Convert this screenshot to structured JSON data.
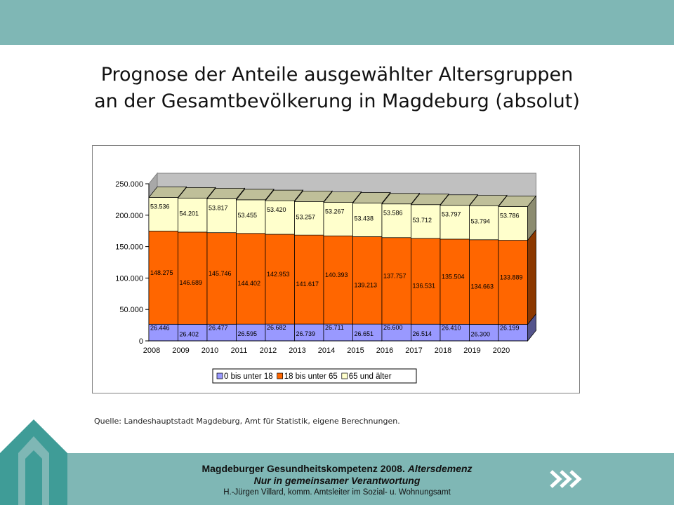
{
  "slide": {
    "title_line1": "Prognose der Anteile ausgewählter Altersgruppen",
    "title_line2": "an der Gesamtbevölkerung in Magdeburg (absolut)",
    "source": "Quelle: Landeshauptstadt Magdeburg, Amt für Statistik, eigene Berechnungen.",
    "footer_line1_bold": "Magdeburger Gesundheitskompetenz 2008.",
    "footer_line1_italic": "Altersdemenz",
    "footer_line2": "Nur in gemeinsamer Verantwortung",
    "footer_line3": "H.-Jürgen Villard, komm. Amtsleiter im Sozial- u. Wohnungsamt",
    "colors": {
      "band": "#7fb7b5",
      "logo": "#3f9c97",
      "arrows": "#ffffff"
    },
    "icons": {
      "logo": "gate-logo-icon",
      "arrows": "double-chevron-right-icon"
    }
  },
  "chart_data": {
    "type": "bar",
    "stacked": true,
    "three_d": true,
    "categories": [
      "2008",
      "2009",
      "2010",
      "2011",
      "2012",
      "2013",
      "2014",
      "2015",
      "2016",
      "2017",
      "2018",
      "2019",
      "2020"
    ],
    "series": [
      {
        "name": "0 bis unter 18",
        "color": "#9999ff",
        "values": [
          26446,
          26402,
          26477,
          26595,
          26682,
          26739,
          26711,
          26651,
          26600,
          26514,
          26410,
          26300,
          26199
        ],
        "labels": [
          "26.446",
          "26.402",
          "26.477",
          "26.595",
          "26.682",
          "26.739",
          "26.711",
          "26.651",
          "26.600",
          "26.514",
          "26.410",
          "26.300",
          "26.199"
        ]
      },
      {
        "name": "18 bis unter 65",
        "color": "#ff6600",
        "values": [
          148275,
          146689,
          145746,
          144402,
          142953,
          141617,
          140393,
          139213,
          137757,
          136531,
          135504,
          134663,
          133889
        ],
        "labels": [
          "148.275",
          "146.689",
          "145.746",
          "144.402",
          "142.953",
          "141.617",
          "140.393",
          "139.213",
          "137.757",
          "136.531",
          "135.504",
          "134.663",
          "133.889"
        ]
      },
      {
        "name": "65 und älter",
        "color": "#ffffcc",
        "values": [
          53536,
          54201,
          53817,
          53455,
          53420,
          53257,
          53267,
          53438,
          53586,
          53712,
          53797,
          53794,
          53786
        ],
        "labels": [
          "53.536",
          "54.201",
          "53.817",
          "53.455",
          "53.420",
          "53.257",
          "53.267",
          "53.438",
          "53.586",
          "53.712",
          "53.797",
          "53.794",
          "53.786"
        ]
      }
    ],
    "ylim": [
      0,
      250000
    ],
    "yticks": [
      0,
      50000,
      100000,
      150000,
      200000,
      250000
    ],
    "ytick_labels": [
      "0",
      "50.000",
      "100.000",
      "150.000",
      "200.000",
      "250.000"
    ],
    "grid": false,
    "legend_position": "bottom"
  }
}
